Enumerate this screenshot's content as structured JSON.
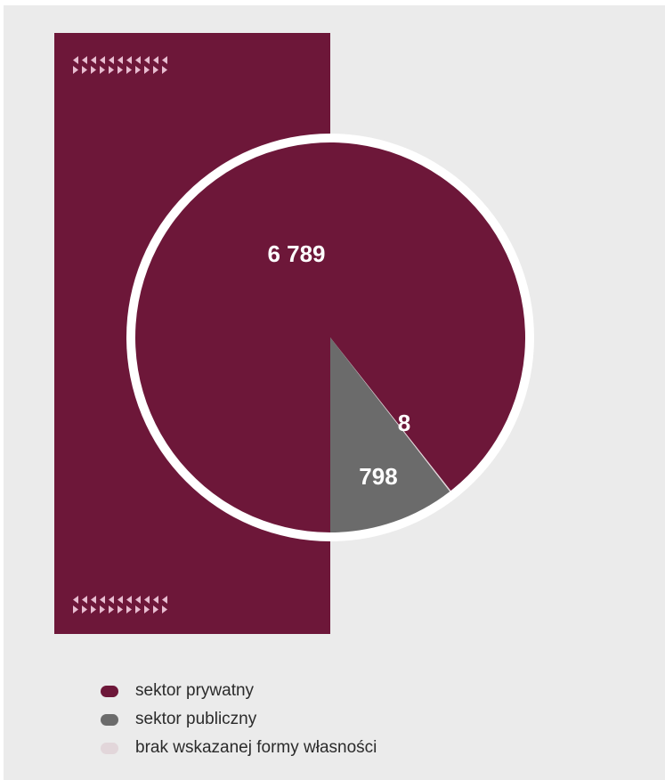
{
  "chart_data": {
    "type": "pie",
    "categories": [
      "sektor prywatny",
      "sektor publiczny",
      "brak wskazanej formy własności"
    ],
    "values": [
      6789,
      798,
      8
    ],
    "value_labels": [
      "6 789",
      "798",
      "8"
    ],
    "colors": [
      "#6d1739",
      "#6b6b6b",
      "#e2d6da"
    ],
    "legend_position": "bottom-left"
  },
  "decoration": {
    "pattern_color": "#e7bcd0"
  }
}
